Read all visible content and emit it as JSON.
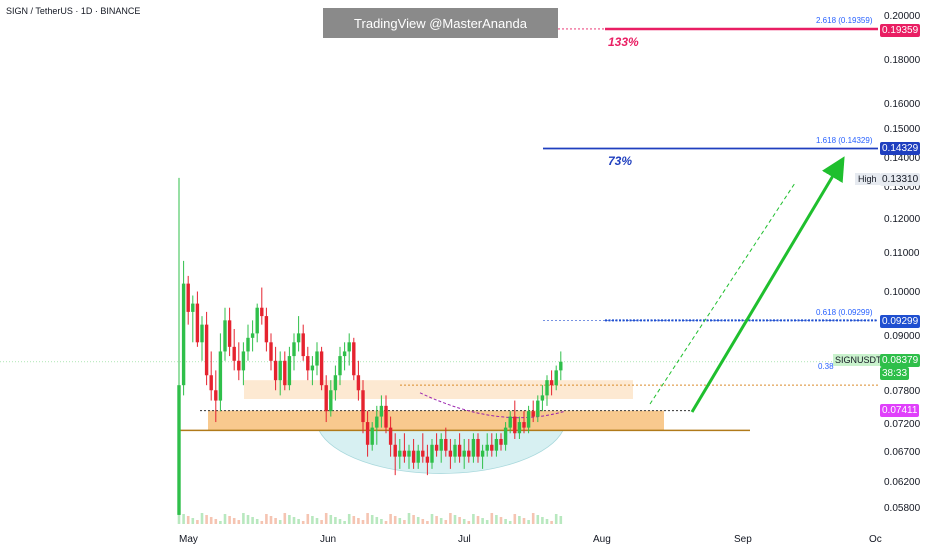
{
  "header": {
    "symbol": "SIGN / TetherUS · 1D · BINANCE",
    "watermark": "TradingView @MasterAnanda"
  },
  "annotations": {
    "pct_top": "133%",
    "pct_mid": "73%",
    "fib_2618": "2.618 (0.19359)",
    "fib_1618": "1.618 (0.14329)",
    "fib_0618": "0.618 (0.09299)",
    "fib_0382_partial": "0.38",
    "high_label": "High",
    "ticker_label": "SIGNUSDT"
  },
  "price_axis": {
    "ticks": [
      "0.20000",
      "0.18000",
      "0.16000",
      "0.15000",
      "0.14000",
      "0.13000",
      "0.12000",
      "0.11000",
      "0.10000",
      "0.09000",
      "0.07800",
      "0.07200",
      "0.06700",
      "0.06200",
      "0.05800"
    ],
    "tags": {
      "fib_2618": "0.19359",
      "fib_1618": "0.14329",
      "high": "0.13310",
      "fib_0618": "0.09299",
      "last": "0.08379",
      "countdown": "38:33",
      "support": "0.07411"
    }
  },
  "time_axis": {
    "labels": [
      "May",
      "Jun",
      "Jul",
      "Aug",
      "Sep",
      "Oc"
    ]
  },
  "colors": {
    "up": "#2fbf4a",
    "down": "#e5232f",
    "fib_2618": "#e91e63",
    "fib_1618": "#1f3fbf",
    "fib_0618": "#1f4fd0",
    "support_tag": "#e040fb",
    "support_line": "#b07a1a",
    "arrow": "#1fbf2e",
    "zone_dark": "#f8c98e",
    "zone_light": "#fde9d2",
    "arc_fill": "#d7f0f2"
  },
  "chart_data": {
    "type": "candlestick",
    "pair": "SIGN / TetherUS",
    "timeframe": "1D",
    "exchange": "BINANCE",
    "scale": "log",
    "y_range": [
      0.057,
      0.203
    ],
    "x_labels": [
      "May",
      "Jun",
      "Jul",
      "Aug",
      "Sep",
      "Oc"
    ],
    "last_price": 0.08379,
    "candles": [
      {
        "date": "2025-04-28",
        "o": 0.057,
        "h": 0.1331,
        "l": 0.057,
        "c": 0.079
      },
      {
        "date": "2025-04-29",
        "o": 0.079,
        "h": 0.108,
        "l": 0.077,
        "c": 0.102
      },
      {
        "date": "2025-04-30",
        "o": 0.102,
        "h": 0.104,
        "l": 0.092,
        "c": 0.095
      },
      {
        "date": "2025-05-01",
        "o": 0.095,
        "h": 0.099,
        "l": 0.088,
        "c": 0.097
      },
      {
        "date": "2025-05-02",
        "o": 0.097,
        "h": 0.1,
        "l": 0.087,
        "c": 0.088
      },
      {
        "date": "2025-05-03",
        "o": 0.088,
        "h": 0.094,
        "l": 0.084,
        "c": 0.092
      },
      {
        "date": "2025-05-04",
        "o": 0.092,
        "h": 0.095,
        "l": 0.079,
        "c": 0.081
      },
      {
        "date": "2025-05-05",
        "o": 0.081,
        "h": 0.086,
        "l": 0.076,
        "c": 0.078
      },
      {
        "date": "2025-05-06",
        "o": 0.078,
        "h": 0.082,
        "l": 0.072,
        "c": 0.076
      },
      {
        "date": "2025-05-07",
        "o": 0.076,
        "h": 0.09,
        "l": 0.074,
        "c": 0.086
      },
      {
        "date": "2025-05-08",
        "o": 0.086,
        "h": 0.096,
        "l": 0.084,
        "c": 0.093
      },
      {
        "date": "2025-05-09",
        "o": 0.093,
        "h": 0.096,
        "l": 0.085,
        "c": 0.087
      },
      {
        "date": "2025-05-10",
        "o": 0.087,
        "h": 0.091,
        "l": 0.082,
        "c": 0.084
      },
      {
        "date": "2025-05-11",
        "o": 0.084,
        "h": 0.088,
        "l": 0.08,
        "c": 0.082
      },
      {
        "date": "2025-05-12",
        "o": 0.082,
        "h": 0.088,
        "l": 0.079,
        "c": 0.086
      },
      {
        "date": "2025-05-13",
        "o": 0.086,
        "h": 0.092,
        "l": 0.084,
        "c": 0.089
      },
      {
        "date": "2025-05-14",
        "o": 0.089,
        "h": 0.093,
        "l": 0.086,
        "c": 0.09
      },
      {
        "date": "2025-05-15",
        "o": 0.09,
        "h": 0.097,
        "l": 0.088,
        "c": 0.096
      },
      {
        "date": "2025-05-16",
        "o": 0.096,
        "h": 0.101,
        "l": 0.092,
        "c": 0.094
      },
      {
        "date": "2025-05-17",
        "o": 0.094,
        "h": 0.096,
        "l": 0.086,
        "c": 0.088
      },
      {
        "date": "2025-05-18",
        "o": 0.088,
        "h": 0.09,
        "l": 0.082,
        "c": 0.084
      },
      {
        "date": "2025-05-19",
        "o": 0.084,
        "h": 0.087,
        "l": 0.078,
        "c": 0.08
      },
      {
        "date": "2025-05-20",
        "o": 0.08,
        "h": 0.086,
        "l": 0.077,
        "c": 0.084
      },
      {
        "date": "2025-05-21",
        "o": 0.084,
        "h": 0.086,
        "l": 0.078,
        "c": 0.079
      },
      {
        "date": "2025-05-22",
        "o": 0.079,
        "h": 0.087,
        "l": 0.078,
        "c": 0.085
      },
      {
        "date": "2025-05-23",
        "o": 0.085,
        "h": 0.09,
        "l": 0.082,
        "c": 0.088
      },
      {
        "date": "2025-05-24",
        "o": 0.088,
        "h": 0.094,
        "l": 0.086,
        "c": 0.09
      },
      {
        "date": "2025-05-25",
        "o": 0.09,
        "h": 0.092,
        "l": 0.084,
        "c": 0.085
      },
      {
        "date": "2025-05-26",
        "o": 0.085,
        "h": 0.087,
        "l": 0.08,
        "c": 0.082
      },
      {
        "date": "2025-05-27",
        "o": 0.082,
        "h": 0.085,
        "l": 0.079,
        "c": 0.083
      },
      {
        "date": "2025-05-28",
        "o": 0.083,
        "h": 0.088,
        "l": 0.081,
        "c": 0.086
      },
      {
        "date": "2025-05-29",
        "o": 0.086,
        "h": 0.087,
        "l": 0.078,
        "c": 0.079
      },
      {
        "date": "2025-05-30",
        "o": 0.079,
        "h": 0.081,
        "l": 0.072,
        "c": 0.074
      },
      {
        "date": "2025-05-31",
        "o": 0.074,
        "h": 0.08,
        "l": 0.073,
        "c": 0.078
      },
      {
        "date": "2025-06-01",
        "o": 0.078,
        "h": 0.083,
        "l": 0.076,
        "c": 0.081
      },
      {
        "date": "2025-06-02",
        "o": 0.081,
        "h": 0.087,
        "l": 0.079,
        "c": 0.085
      },
      {
        "date": "2025-06-03",
        "o": 0.085,
        "h": 0.088,
        "l": 0.082,
        "c": 0.086
      },
      {
        "date": "2025-06-04",
        "o": 0.086,
        "h": 0.09,
        "l": 0.083,
        "c": 0.088
      },
      {
        "date": "2025-06-05",
        "o": 0.088,
        "h": 0.089,
        "l": 0.08,
        "c": 0.081
      },
      {
        "date": "2025-06-06",
        "o": 0.081,
        "h": 0.084,
        "l": 0.076,
        "c": 0.078
      },
      {
        "date": "2025-06-07",
        "o": 0.078,
        "h": 0.08,
        "l": 0.07,
        "c": 0.072
      },
      {
        "date": "2025-06-08",
        "o": 0.072,
        "h": 0.074,
        "l": 0.066,
        "c": 0.068
      },
      {
        "date": "2025-06-09",
        "o": 0.068,
        "h": 0.072,
        "l": 0.067,
        "c": 0.071
      },
      {
        "date": "2025-06-10",
        "o": 0.071,
        "h": 0.075,
        "l": 0.068,
        "c": 0.073
      },
      {
        "date": "2025-06-11",
        "o": 0.073,
        "h": 0.077,
        "l": 0.071,
        "c": 0.075
      },
      {
        "date": "2025-06-12",
        "o": 0.075,
        "h": 0.077,
        "l": 0.07,
        "c": 0.071
      },
      {
        "date": "2025-06-13",
        "o": 0.071,
        "h": 0.073,
        "l": 0.066,
        "c": 0.068
      },
      {
        "date": "2025-06-14",
        "o": 0.068,
        "h": 0.07,
        "l": 0.063,
        "c": 0.066
      },
      {
        "date": "2025-06-15",
        "o": 0.066,
        "h": 0.069,
        "l": 0.064,
        "c": 0.067
      },
      {
        "date": "2025-06-16",
        "o": 0.067,
        "h": 0.07,
        "l": 0.065,
        "c": 0.066
      },
      {
        "date": "2025-06-17",
        "o": 0.066,
        "h": 0.068,
        "l": 0.064,
        "c": 0.067
      },
      {
        "date": "2025-06-18",
        "o": 0.067,
        "h": 0.069,
        "l": 0.064,
        "c": 0.065
      },
      {
        "date": "2025-06-19",
        "o": 0.065,
        "h": 0.068,
        "l": 0.064,
        "c": 0.067
      },
      {
        "date": "2025-06-20",
        "o": 0.067,
        "h": 0.07,
        "l": 0.065,
        "c": 0.066
      },
      {
        "date": "2025-06-21",
        "o": 0.066,
        "h": 0.068,
        "l": 0.063,
        "c": 0.065
      },
      {
        "date": "2025-06-22",
        "o": 0.065,
        "h": 0.069,
        "l": 0.064,
        "c": 0.068
      },
      {
        "date": "2025-06-23",
        "o": 0.068,
        "h": 0.07,
        "l": 0.066,
        "c": 0.067
      },
      {
        "date": "2025-06-24",
        "o": 0.067,
        "h": 0.07,
        "l": 0.065,
        "c": 0.069
      },
      {
        "date": "2025-06-25",
        "o": 0.069,
        "h": 0.071,
        "l": 0.066,
        "c": 0.067
      },
      {
        "date": "2025-06-26",
        "o": 0.067,
        "h": 0.069,
        "l": 0.064,
        "c": 0.066
      },
      {
        "date": "2025-06-27",
        "o": 0.066,
        "h": 0.069,
        "l": 0.065,
        "c": 0.068
      },
      {
        "date": "2025-06-28",
        "o": 0.068,
        "h": 0.07,
        "l": 0.065,
        "c": 0.066
      },
      {
        "date": "2025-06-29",
        "o": 0.066,
        "h": 0.069,
        "l": 0.064,
        "c": 0.067
      },
      {
        "date": "2025-06-30",
        "o": 0.067,
        "h": 0.069,
        "l": 0.065,
        "c": 0.066
      },
      {
        "date": "2025-07-01",
        "o": 0.066,
        "h": 0.07,
        "l": 0.065,
        "c": 0.069
      },
      {
        "date": "2025-07-02",
        "o": 0.069,
        "h": 0.07,
        "l": 0.065,
        "c": 0.066
      },
      {
        "date": "2025-07-03",
        "o": 0.066,
        "h": 0.068,
        "l": 0.064,
        "c": 0.067
      },
      {
        "date": "2025-07-04",
        "o": 0.067,
        "h": 0.07,
        "l": 0.066,
        "c": 0.068
      },
      {
        "date": "2025-07-05",
        "o": 0.068,
        "h": 0.07,
        "l": 0.066,
        "c": 0.067
      },
      {
        "date": "2025-07-06",
        "o": 0.067,
        "h": 0.07,
        "l": 0.066,
        "c": 0.069
      },
      {
        "date": "2025-07-07",
        "o": 0.069,
        "h": 0.07,
        "l": 0.067,
        "c": 0.068
      },
      {
        "date": "2025-07-08",
        "o": 0.068,
        "h": 0.072,
        "l": 0.067,
        "c": 0.071
      },
      {
        "date": "2025-07-09",
        "o": 0.071,
        "h": 0.074,
        "l": 0.07,
        "c": 0.073
      },
      {
        "date": "2025-07-10",
        "o": 0.073,
        "h": 0.076,
        "l": 0.069,
        "c": 0.07
      },
      {
        "date": "2025-07-11",
        "o": 0.07,
        "h": 0.073,
        "l": 0.069,
        "c": 0.072
      },
      {
        "date": "2025-07-12",
        "o": 0.072,
        "h": 0.074,
        "l": 0.07,
        "c": 0.071
      },
      {
        "date": "2025-07-13",
        "o": 0.071,
        "h": 0.075,
        "l": 0.07,
        "c": 0.074
      },
      {
        "date": "2025-07-14",
        "o": 0.074,
        "h": 0.076,
        "l": 0.072,
        "c": 0.073
      },
      {
        "date": "2025-07-15",
        "o": 0.073,
        "h": 0.077,
        "l": 0.072,
        "c": 0.076
      },
      {
        "date": "2025-07-16",
        "o": 0.076,
        "h": 0.079,
        "l": 0.074,
        "c": 0.077
      },
      {
        "date": "2025-07-17",
        "o": 0.077,
        "h": 0.081,
        "l": 0.075,
        "c": 0.08
      },
      {
        "date": "2025-07-18",
        "o": 0.08,
        "h": 0.082,
        "l": 0.077,
        "c": 0.079
      },
      {
        "date": "2025-07-19",
        "o": 0.079,
        "h": 0.083,
        "l": 0.078,
        "c": 0.082
      },
      {
        "date": "2025-07-20",
        "o": 0.082,
        "h": 0.086,
        "l": 0.08,
        "c": 0.0838
      }
    ],
    "fib_levels": [
      {
        "label": "2.618 (0.19359)",
        "value": 0.19359
      },
      {
        "label": "1.618 (0.14329)",
        "value": 0.14329
      },
      {
        "label": "0.618 (0.09299)",
        "value": 0.09299
      }
    ],
    "high": 0.1331,
    "support": 0.07411,
    "annotations": [
      "133%",
      "73%"
    ]
  }
}
